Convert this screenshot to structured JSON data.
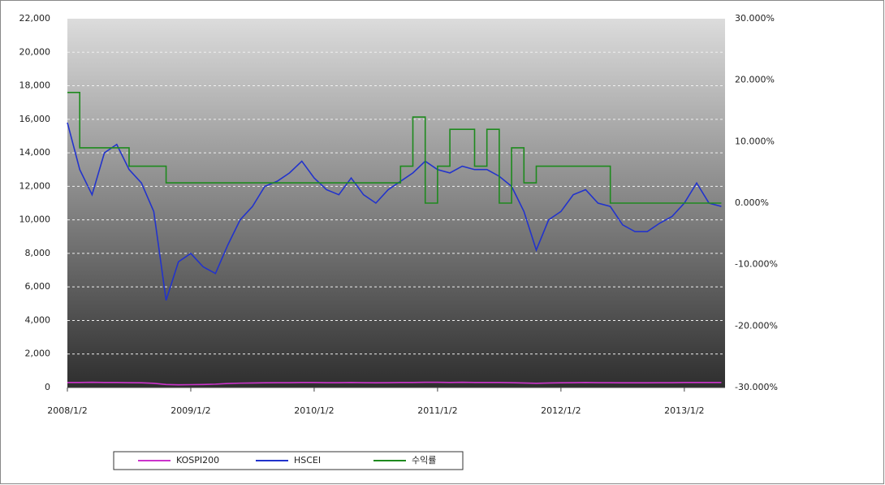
{
  "chart_data": {
    "type": "line",
    "x": [
      2008.0,
      2008.1,
      2008.2,
      2008.3,
      2008.4,
      2008.5,
      2008.6,
      2008.7,
      2008.8,
      2008.9,
      2009.0,
      2009.1,
      2009.2,
      2009.3,
      2009.4,
      2009.5,
      2009.6,
      2009.7,
      2009.8,
      2009.9,
      2010.0,
      2010.1,
      2010.2,
      2010.3,
      2010.4,
      2010.5,
      2010.6,
      2010.7,
      2010.8,
      2010.9,
      2011.0,
      2011.1,
      2011.2,
      2011.3,
      2011.4,
      2011.5,
      2011.6,
      2011.7,
      2011.8,
      2011.9,
      2012.0,
      2012.1,
      2012.2,
      2012.3,
      2012.4,
      2012.5,
      2012.6,
      2012.7,
      2012.8,
      2012.9,
      2013.0,
      2013.1,
      2013.2,
      2013.3
    ],
    "xlim": [
      2008.0,
      2013.33
    ],
    "xticks": [
      {
        "value": 2008,
        "label": "2008/1/2"
      },
      {
        "value": 2009,
        "label": "2009/1/2"
      },
      {
        "value": 2010,
        "label": "2010/1/2"
      },
      {
        "value": 2011,
        "label": "2011/1/2"
      },
      {
        "value": 2012,
        "label": "2012/1/2"
      },
      {
        "value": 2013,
        "label": "2013/1/2"
      }
    ],
    "ylim": [
      0,
      22000
    ],
    "yticks": [
      0,
      {
        "value": 2000,
        "label": "2,000"
      },
      {
        "value": 4000,
        "label": "4,000"
      },
      {
        "value": 6000,
        "label": "6,000"
      },
      {
        "value": 8000,
        "label": "8,000"
      },
      {
        "value": 10000,
        "label": "10,000"
      },
      {
        "value": 12000,
        "label": "12,000"
      },
      {
        "value": 14000,
        "label": "14,000"
      },
      {
        "value": 16000,
        "label": "16,000"
      },
      {
        "value": 18000,
        "label": "18,000"
      },
      {
        "value": 20000,
        "label": "20,000"
      },
      {
        "value": 22000,
        "label": "22,000"
      }
    ],
    "y2lim": [
      -30,
      30
    ],
    "y2ticks": [
      {
        "value": -30,
        "label": "-30.000%"
      },
      {
        "value": -20,
        "label": "-20.000%"
      },
      {
        "value": -10,
        "label": "-10.000%"
      },
      {
        "value": 0,
        "label": "0.000%"
      },
      {
        "value": 10,
        "label": "10.000%"
      },
      {
        "value": 20,
        "label": "20.000%"
      },
      {
        "value": 30,
        "label": "30.000%"
      }
    ],
    "grid": true,
    "legend": "bottom",
    "series": [
      {
        "name": "KOSPI200",
        "color": "#cc33cc",
        "values": [
          300,
          300,
          310,
          300,
          300,
          290,
          280,
          250,
          180,
          160,
          170,
          180,
          200,
          240,
          260,
          270,
          280,
          290,
          290,
          300,
          300,
          290,
          290,
          300,
          290,
          280,
          290,
          300,
          300,
          310,
          310,
          300,
          310,
          300,
          300,
          300,
          290,
          270,
          250,
          270,
          280,
          290,
          300,
          290,
          290,
          280,
          280,
          280,
          290,
          290,
          300,
          300,
          300,
          300
        ]
      },
      {
        "name": "HSCEI",
        "color": "#2233cc",
        "values": [
          15800,
          13000,
          11500,
          14000,
          14500,
          13000,
          12200,
          10500,
          5200,
          7500,
          8000,
          7200,
          6800,
          8500,
          10000,
          10800,
          12000,
          12300,
          12800,
          13500,
          12500,
          11800,
          11500,
          12500,
          11500,
          11000,
          11800,
          12300,
          12800,
          13500,
          13000,
          12800,
          13200,
          13000,
          13000,
          12600,
          12000,
          10500,
          8200,
          10000,
          10500,
          11500,
          11800,
          11000,
          10800,
          9700,
          9300,
          9300,
          9800,
          10200,
          11000,
          12200,
          11000,
          10800
        ]
      },
      {
        "name": "수익률",
        "color": "#1e8a1e",
        "axis": "y2",
        "values": [
          18,
          9,
          9,
          9,
          9,
          6,
          6,
          6,
          3.3,
          3.3,
          3.3,
          3.3,
          3.3,
          3.3,
          3.3,
          3.3,
          3.3,
          3.3,
          3.3,
          3.3,
          3.3,
          3.3,
          3.3,
          3.3,
          3.3,
          3.3,
          3.3,
          6,
          14,
          0,
          6,
          12,
          12,
          6,
          12,
          0,
          9,
          3.3,
          6,
          6,
          6,
          6,
          6,
          6,
          0,
          0,
          0,
          0,
          0,
          0,
          0,
          0,
          0,
          0
        ]
      }
    ]
  }
}
